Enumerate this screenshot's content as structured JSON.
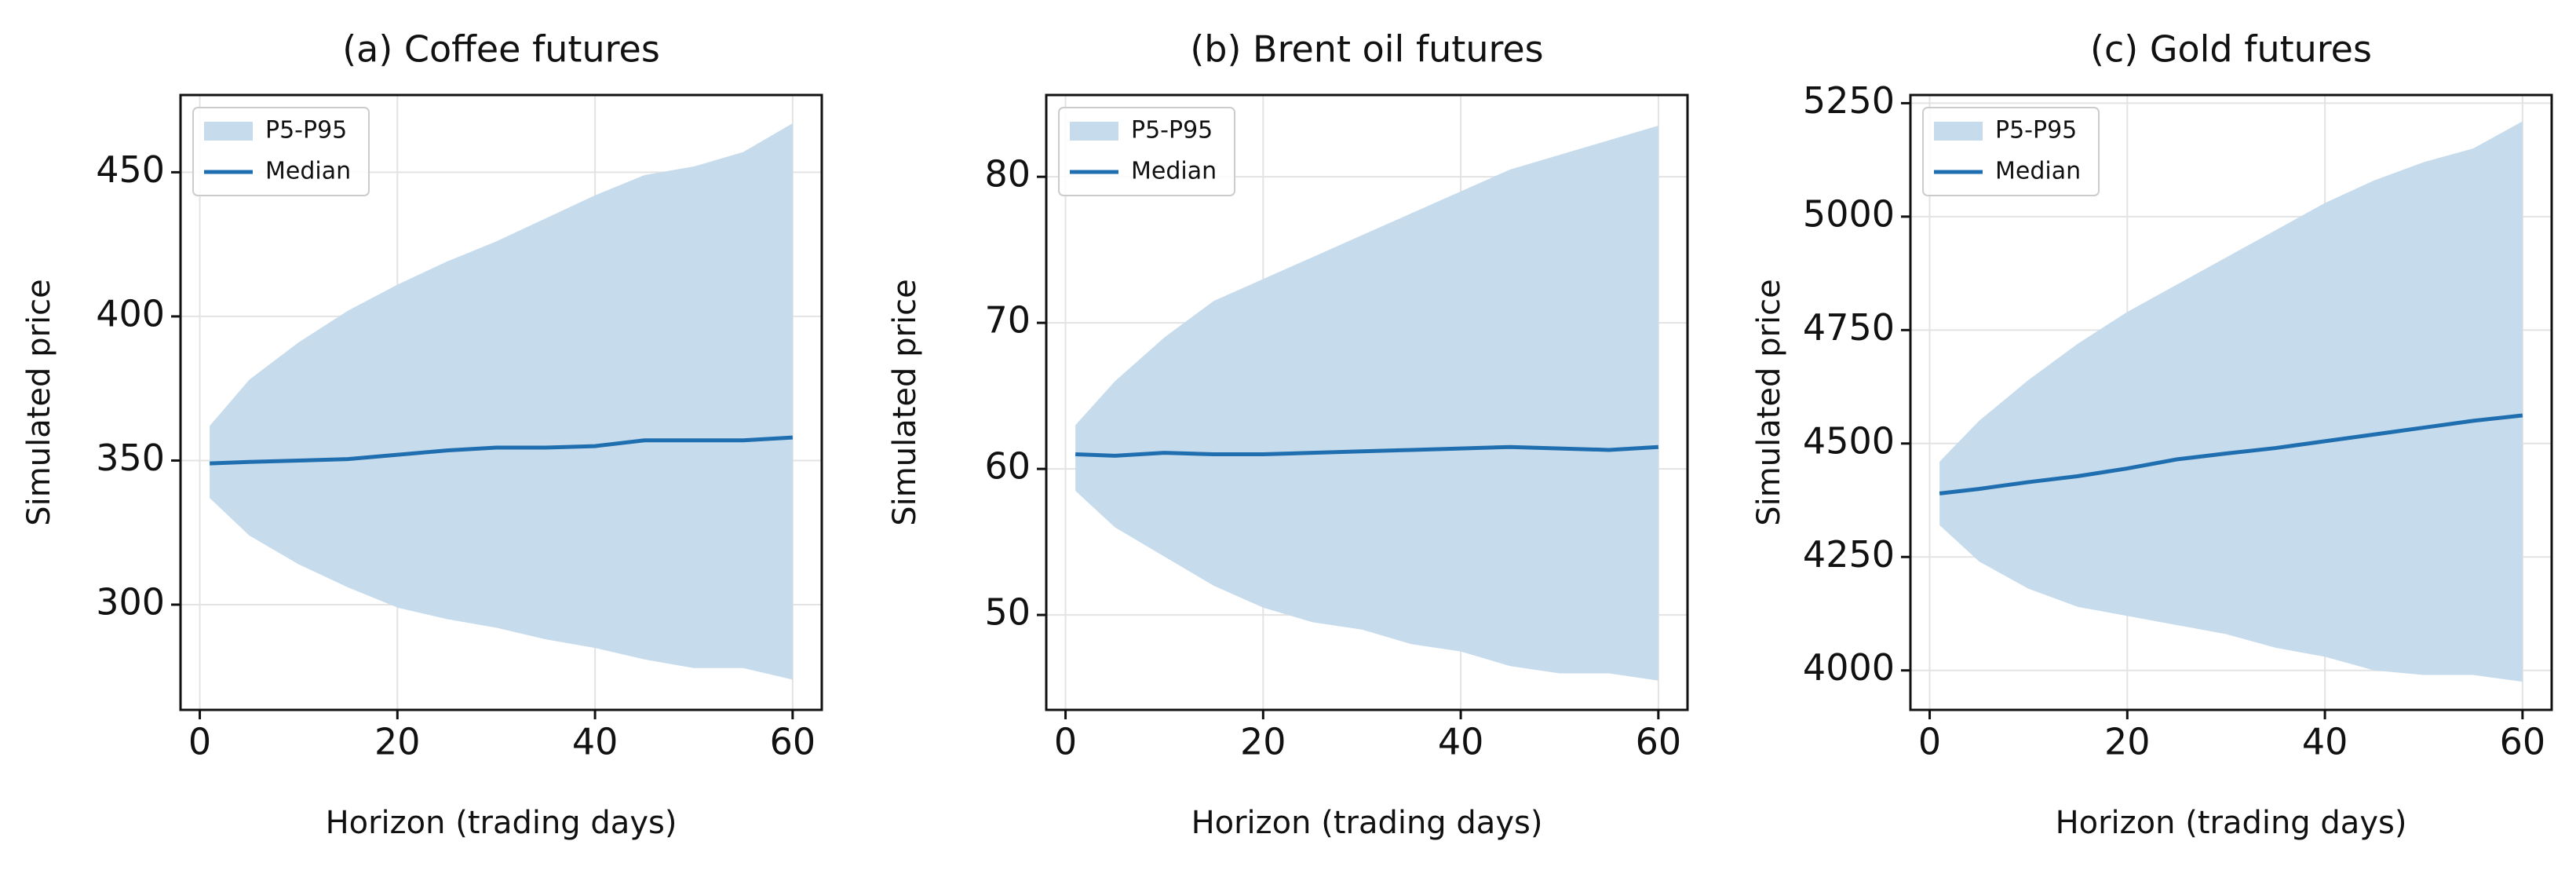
{
  "chart_data": [
    {
      "type": "line",
      "title": "(a) Coffee futures",
      "x_label": "Horizon (trading days)",
      "y_label": "Simulated price",
      "x": [
        1,
        5,
        10,
        15,
        20,
        25,
        30,
        35,
        40,
        45,
        50,
        55,
        60
      ],
      "series": [
        {
          "name": "P5-P95",
          "color": "#c6dbec",
          "low": [
            337,
            324,
            314,
            306,
            299,
            295,
            292,
            288,
            285,
            281,
            278,
            278,
            274
          ],
          "high": [
            362,
            378,
            391,
            402,
            411,
            419,
            426,
            434,
            442,
            449,
            452,
            457,
            467
          ]
        },
        {
          "name": "Median",
          "color": "#1f6fb0",
          "values": [
            349,
            349.5,
            350,
            350.5,
            352,
            353.5,
            354.5,
            354.5,
            355,
            357,
            357,
            357,
            358
          ]
        }
      ],
      "xlim": [
        -1.95,
        62.95
      ],
      "xticks": [
        0,
        20,
        40,
        60
      ],
      "ylim": [
        263.5,
        476.8
      ],
      "yticks": [
        300,
        350,
        400,
        450
      ],
      "grid": true,
      "legend": "upper-left"
    },
    {
      "type": "line",
      "title": "(b) Brent oil futures",
      "x_label": "Horizon (trading days)",
      "y_label": "Simulated price",
      "x": [
        1,
        5,
        10,
        15,
        20,
        25,
        30,
        35,
        40,
        45,
        50,
        55,
        60
      ],
      "series": [
        {
          "name": "P5-P95",
          "color": "#c6dbec",
          "low": [
            58.5,
            56,
            54,
            52,
            50.5,
            49.5,
            49,
            48,
            47.5,
            46.5,
            46,
            46,
            45.5
          ],
          "high": [
            63,
            66,
            69,
            71.5,
            73,
            74.5,
            76,
            77.5,
            79,
            80.5,
            81.5,
            82.5,
            83.5
          ]
        },
        {
          "name": "Median",
          "color": "#1f6fb0",
          "values": [
            61,
            60.9,
            61.1,
            61,
            61,
            61.1,
            61.2,
            61.3,
            61.4,
            61.5,
            61.4,
            61.3,
            61.5
          ]
        }
      ],
      "xlim": [
        -1.95,
        62.95
      ],
      "xticks": [
        0,
        20,
        40,
        60
      ],
      "ylim": [
        43.5,
        85.6
      ],
      "yticks": [
        50,
        60,
        70,
        80
      ],
      "grid": true,
      "legend": "upper-left"
    },
    {
      "type": "line",
      "title": "(c) Gold futures",
      "x_label": "Horizon (trading days)",
      "y_label": "Simulated price",
      "x": [
        1,
        5,
        10,
        15,
        20,
        25,
        30,
        35,
        40,
        45,
        50,
        55,
        60
      ],
      "series": [
        {
          "name": "P5-P95",
          "color": "#c6dbec",
          "low": [
            4320,
            4240,
            4180,
            4140,
            4120,
            4100,
            4080,
            4050,
            4030,
            4000,
            3990,
            3990,
            3975
          ],
          "high": [
            4460,
            4550,
            4640,
            4720,
            4790,
            4850,
            4910,
            4970,
            5030,
            5080,
            5120,
            5150,
            5210
          ]
        },
        {
          "name": "Median",
          "color": "#1f6fb0",
          "values": [
            4390,
            4400,
            4415,
            4428,
            4445,
            4465,
            4478,
            4490,
            4505,
            4520,
            4535,
            4550,
            4562
          ]
        }
      ],
      "xlim": [
        -1.95,
        62.95
      ],
      "xticks": [
        0,
        20,
        40,
        60
      ],
      "ylim": [
        3913,
        5268
      ],
      "yticks": [
        4000,
        4250,
        4500,
        4750,
        5000,
        5250
      ],
      "grid": true,
      "legend": "upper-left"
    }
  ]
}
